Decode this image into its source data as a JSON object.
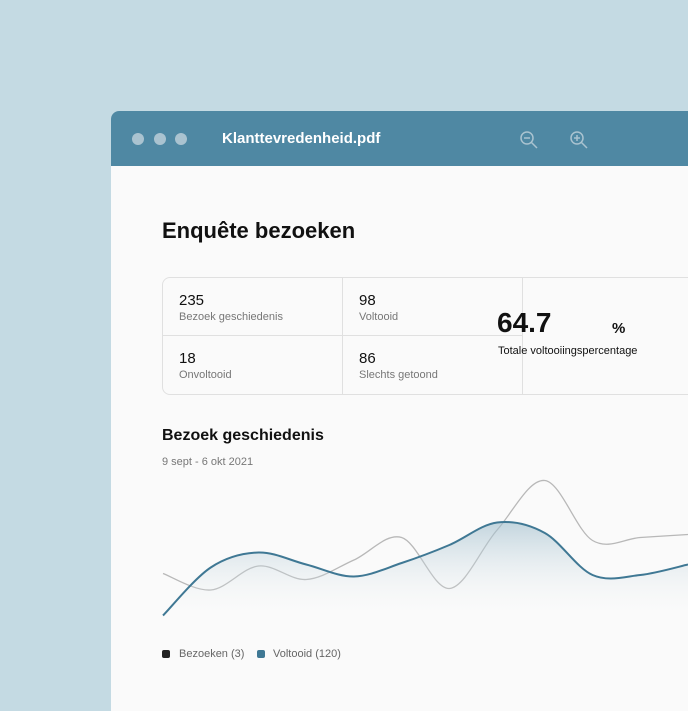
{
  "window": {
    "title": "Klanttevredenheid.pdf"
  },
  "header": {
    "title": "Enquête bezoeken"
  },
  "stats": [
    {
      "value": 235,
      "label": "Bezoek geschiedenis"
    },
    {
      "value": 98,
      "label": "Voltooid"
    },
    {
      "value": 18,
      "label": "Onvoltooid"
    },
    {
      "value": 86,
      "label": "Slechts getoond"
    }
  ],
  "total": {
    "value": 64.7,
    "unit": "%",
    "label": "Totale voltooiingspercentage"
  },
  "chart_data": {
    "type": "line",
    "title": "Bezoek geschiedenis",
    "subtitle": "9 sept - 6 okt 2021",
    "ylim": [
      0,
      100
    ],
    "series": [
      {
        "name": "Bezoeken (3)",
        "color": "#b8b8b8",
        "legend_color": "#222222",
        "values": [
          31,
          20,
          36,
          27,
          40,
          55,
          21,
          60,
          93,
          53,
          55,
          57
        ]
      },
      {
        "name": "Voltooid (120)",
        "color": "#3f7894",
        "values": [
          3,
          35,
          45,
          37,
          29,
          38,
          50,
          65,
          58,
          30,
          30,
          37
        ]
      }
    ]
  }
}
